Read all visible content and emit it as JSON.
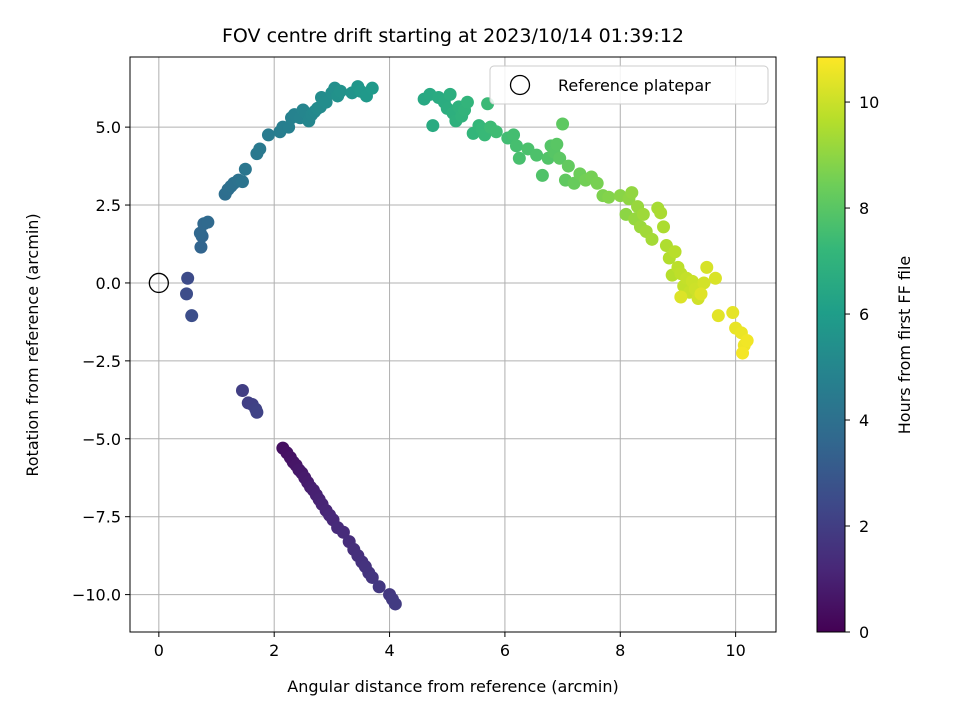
{
  "chart_data": {
    "type": "scatter",
    "title": "FOV centre drift starting at 2023/10/14 01:39:12",
    "xlabel": "Angular distance from reference (arcmin)",
    "ylabel": "Rotation from reference (arcmin)",
    "xlim": [
      -0.5,
      10.7
    ],
    "ylim": [
      -11.2,
      7.25
    ],
    "xticks": [
      0,
      2,
      4,
      6,
      8,
      10
    ],
    "yticks": [
      -10.0,
      -7.5,
      -5.0,
      -2.5,
      0.0,
      2.5,
      5.0
    ],
    "xtick_labels": [
      "0",
      "2",
      "4",
      "6",
      "8",
      "10"
    ],
    "ytick_labels": [
      "−10.0",
      "−7.5",
      "−5.0",
      "−2.5",
      "0.0",
      "2.5",
      "5.0"
    ],
    "grid": true,
    "legend": {
      "label": "Reference platepar",
      "placement": "top-right"
    },
    "colorbar": {
      "label": "Hours from first FF file",
      "range": [
        0,
        10.85
      ],
      "ticks": [
        0,
        2,
        4,
        6,
        8,
        10
      ],
      "tick_labels": [
        "0",
        "2",
        "4",
        "6",
        "8",
        "10"
      ],
      "colormap": [
        "#440154",
        "#482878",
        "#3e4989",
        "#31688e",
        "#26828e",
        "#1f9e89",
        "#35b779",
        "#6ece58",
        "#b5de2b",
        "#fde725"
      ]
    },
    "reference_point": {
      "x": 0,
      "y": 0
    },
    "series": [
      {
        "points": [
          [
            2.15,
            -5.3,
            0.45
          ],
          [
            2.22,
            -5.45,
            0.5
          ],
          [
            2.28,
            -5.6,
            0.55
          ],
          [
            2.33,
            -5.75,
            0.6
          ],
          [
            2.38,
            -5.85,
            0.65
          ],
          [
            2.43,
            -6.0,
            0.7
          ],
          [
            2.48,
            -6.1,
            0.75
          ],
          [
            2.53,
            -6.25,
            0.8
          ],
          [
            2.58,
            -6.4,
            0.85
          ],
          [
            2.63,
            -6.55,
            0.9
          ],
          [
            2.68,
            -6.65,
            0.95
          ],
          [
            2.73,
            -6.8,
            1.0
          ],
          [
            2.78,
            -6.95,
            1.05
          ],
          [
            2.83,
            -7.1,
            1.1
          ],
          [
            2.9,
            -7.3,
            1.15
          ],
          [
            2.96,
            -7.45,
            1.2
          ],
          [
            3.02,
            -7.6,
            1.25
          ],
          [
            3.1,
            -7.85,
            1.3
          ],
          [
            3.2,
            -8.0,
            1.35
          ],
          [
            3.3,
            -8.3,
            1.4
          ],
          [
            3.38,
            -8.55,
            1.45
          ],
          [
            3.45,
            -8.75,
            1.5
          ],
          [
            3.52,
            -8.95,
            1.55
          ],
          [
            3.58,
            -9.1,
            1.6
          ],
          [
            3.64,
            -9.3,
            1.65
          ],
          [
            3.7,
            -9.45,
            1.7
          ],
          [
            3.82,
            -9.75,
            1.75
          ],
          [
            4.0,
            -10.0,
            1.8
          ],
          [
            4.05,
            -10.15,
            1.85
          ],
          [
            4.1,
            -10.3,
            1.9
          ],
          [
            1.45,
            -3.45,
            2.0
          ],
          [
            1.55,
            -3.85,
            2.05
          ],
          [
            1.62,
            -3.9,
            2.1
          ],
          [
            1.68,
            -4.05,
            2.15
          ],
          [
            1.7,
            -4.15,
            2.2
          ],
          [
            0.5,
            0.15,
            2.5
          ],
          [
            0.48,
            -0.35,
            2.55
          ],
          [
            0.57,
            -1.05,
            2.6
          ],
          [
            0.73,
            1.15,
            3.5
          ],
          [
            0.75,
            1.5,
            3.55
          ],
          [
            0.72,
            1.6,
            3.6
          ],
          [
            0.78,
            1.9,
            3.65
          ],
          [
            0.85,
            1.95,
            3.7
          ],
          [
            1.15,
            2.85,
            3.9
          ],
          [
            1.2,
            3.0,
            3.95
          ],
          [
            1.25,
            3.1,
            4.0
          ],
          [
            1.3,
            3.2,
            4.05
          ],
          [
            1.38,
            3.3,
            4.1
          ],
          [
            1.45,
            3.25,
            4.15
          ],
          [
            1.5,
            3.65,
            4.25
          ],
          [
            1.7,
            4.15,
            4.35
          ],
          [
            1.75,
            4.3,
            4.4
          ],
          [
            1.9,
            4.75,
            4.5
          ],
          [
            2.1,
            4.85,
            4.6
          ],
          [
            2.15,
            5.0,
            4.65
          ],
          [
            2.25,
            5.0,
            4.7
          ],
          [
            2.3,
            5.3,
            4.75
          ],
          [
            2.35,
            5.4,
            4.8
          ],
          [
            2.45,
            5.3,
            4.85
          ],
          [
            2.5,
            5.55,
            4.9
          ],
          [
            2.55,
            5.45,
            4.95
          ],
          [
            2.6,
            5.2,
            5.0
          ],
          [
            2.65,
            5.4,
            5.05
          ],
          [
            2.7,
            5.5,
            5.1
          ],
          [
            2.75,
            5.6,
            5.15
          ],
          [
            2.8,
            5.65,
            5.2
          ],
          [
            2.82,
            5.95,
            5.25
          ],
          [
            2.9,
            5.8,
            5.3
          ],
          [
            3.0,
            6.1,
            5.35
          ],
          [
            3.05,
            6.25,
            5.4
          ],
          [
            3.1,
            6.0,
            5.45
          ],
          [
            3.15,
            6.15,
            5.5
          ],
          [
            3.35,
            6.1,
            5.6
          ],
          [
            3.45,
            6.3,
            5.7
          ],
          [
            3.5,
            6.15,
            5.75
          ],
          [
            3.6,
            6.0,
            5.8
          ],
          [
            3.7,
            6.25,
            5.85
          ],
          [
            4.6,
            5.9,
            6.5
          ],
          [
            4.7,
            6.05,
            6.55
          ],
          [
            4.75,
            5.05,
            6.6
          ],
          [
            4.85,
            5.95,
            6.65
          ],
          [
            4.95,
            5.8,
            6.7
          ],
          [
            5.0,
            5.6,
            6.75
          ],
          [
            5.05,
            6.05,
            6.8
          ],
          [
            5.1,
            5.45,
            6.85
          ],
          [
            5.15,
            5.2,
            6.9
          ],
          [
            5.2,
            5.65,
            6.95
          ],
          [
            5.25,
            5.35,
            7.0
          ],
          [
            5.3,
            5.55,
            7.05
          ],
          [
            5.35,
            5.8,
            7.1
          ],
          [
            5.45,
            4.8,
            7.15
          ],
          [
            5.55,
            5.05,
            7.2
          ],
          [
            5.6,
            4.95,
            7.25
          ],
          [
            5.65,
            4.75,
            7.3
          ],
          [
            5.7,
            5.75,
            7.35
          ],
          [
            5.75,
            5.0,
            7.4
          ],
          [
            5.85,
            4.85,
            7.45
          ],
          [
            6.05,
            4.65,
            7.5
          ],
          [
            6.15,
            4.75,
            7.55
          ],
          [
            6.2,
            4.4,
            7.6
          ],
          [
            6.25,
            4.0,
            7.65
          ],
          [
            6.4,
            4.3,
            7.7
          ],
          [
            6.55,
            4.1,
            7.75
          ],
          [
            6.65,
            3.45,
            7.8
          ],
          [
            6.75,
            4.0,
            7.85
          ],
          [
            6.8,
            4.4,
            7.9
          ],
          [
            6.85,
            4.2,
            7.95
          ],
          [
            6.9,
            4.45,
            8.0
          ],
          [
            6.95,
            4.0,
            8.05
          ],
          [
            7.0,
            5.1,
            8.1
          ],
          [
            7.05,
            3.3,
            8.15
          ],
          [
            7.1,
            3.75,
            8.2
          ],
          [
            7.2,
            3.2,
            8.3
          ],
          [
            7.3,
            3.5,
            8.4
          ],
          [
            7.4,
            3.3,
            8.5
          ],
          [
            7.5,
            3.4,
            8.55
          ],
          [
            7.6,
            3.2,
            8.6
          ],
          [
            7.7,
            2.8,
            8.7
          ],
          [
            7.8,
            2.75,
            8.8
          ],
          [
            8.0,
            2.8,
            8.9
          ],
          [
            8.1,
            2.2,
            8.95
          ],
          [
            8.15,
            2.7,
            9.0
          ],
          [
            8.2,
            2.9,
            9.05
          ],
          [
            8.25,
            2.05,
            9.1
          ],
          [
            8.3,
            2.45,
            9.15
          ],
          [
            8.35,
            1.8,
            9.2
          ],
          [
            8.4,
            2.2,
            9.25
          ],
          [
            8.45,
            1.65,
            9.3
          ],
          [
            8.55,
            1.4,
            9.35
          ],
          [
            8.65,
            2.4,
            9.4
          ],
          [
            8.7,
            2.25,
            9.45
          ],
          [
            8.75,
            1.8,
            9.5
          ],
          [
            8.8,
            1.2,
            9.55
          ],
          [
            8.85,
            0.8,
            9.6
          ],
          [
            8.9,
            0.25,
            9.65
          ],
          [
            8.95,
            1.0,
            9.7
          ],
          [
            9.0,
            0.5,
            9.75
          ],
          [
            9.05,
            0.3,
            9.8
          ],
          [
            9.1,
            -0.1,
            9.85
          ],
          [
            9.15,
            0.15,
            9.9
          ],
          [
            9.2,
            -0.3,
            9.95
          ],
          [
            9.25,
            0.05,
            10.0
          ],
          [
            9.3,
            -0.2,
            10.05
          ],
          [
            9.35,
            -0.5,
            10.1
          ],
          [
            9.45,
            0.0,
            10.15
          ],
          [
            9.5,
            0.5,
            10.2
          ],
          [
            9.65,
            0.15,
            10.25
          ],
          [
            9.05,
            -0.45,
            10.3
          ],
          [
            9.4,
            -0.35,
            10.35
          ],
          [
            9.7,
            -1.05,
            10.4
          ],
          [
            9.95,
            -0.95,
            10.45
          ],
          [
            10.0,
            -1.45,
            10.5
          ],
          [
            10.1,
            -1.6,
            10.55
          ],
          [
            10.15,
            -2.0,
            10.6
          ],
          [
            10.2,
            -1.85,
            10.65
          ],
          [
            10.12,
            -2.25,
            10.7
          ]
        ]
      }
    ]
  }
}
